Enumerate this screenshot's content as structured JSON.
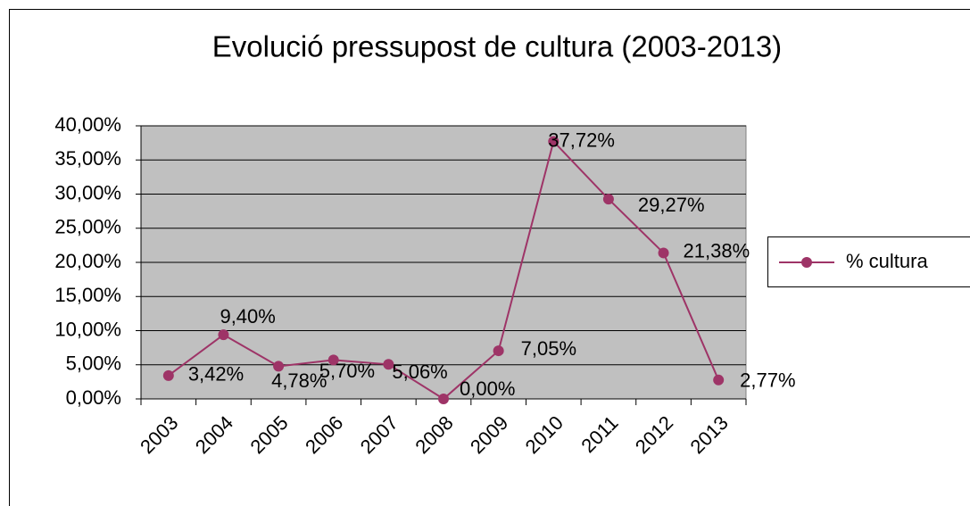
{
  "chart_data": {
    "type": "line",
    "title": "Evolució pressupost de cultura (2003-2013)",
    "categories": [
      "2003",
      "2004",
      "2005",
      "2006",
      "2007",
      "2008",
      "2009",
      "2010",
      "2011",
      "2012",
      "2013"
    ],
    "series": [
      {
        "name": "% cultura",
        "color": "#9e3467",
        "values": [
          3.42,
          9.4,
          4.78,
          5.7,
          5.06,
          0.0,
          7.05,
          37.72,
          29.27,
          21.38,
          2.77
        ],
        "value_labels": [
          "3,42%",
          "9,40%",
          "4,78%",
          "5,70%",
          "5,06%",
          "0,00%",
          "7,05%",
          "37,72%",
          "29,27%",
          "21,38%",
          "2,77%"
        ]
      }
    ],
    "ylim": [
      0,
      40
    ],
    "yticks": [
      {
        "value": 0,
        "label": "0,00%"
      },
      {
        "value": 5,
        "label": "5,00%"
      },
      {
        "value": 10,
        "label": "10,00%"
      },
      {
        "value": 15,
        "label": "15,00%"
      },
      {
        "value": 20,
        "label": "20,00%"
      },
      {
        "value": 25,
        "label": "25,00%"
      },
      {
        "value": 30,
        "label": "30,00%"
      },
      {
        "value": 35,
        "label": "35,00%"
      },
      {
        "value": 40,
        "label": "40,00%"
      }
    ],
    "grid": true,
    "plot_background": "#c0c0c0",
    "legend": "right"
  }
}
